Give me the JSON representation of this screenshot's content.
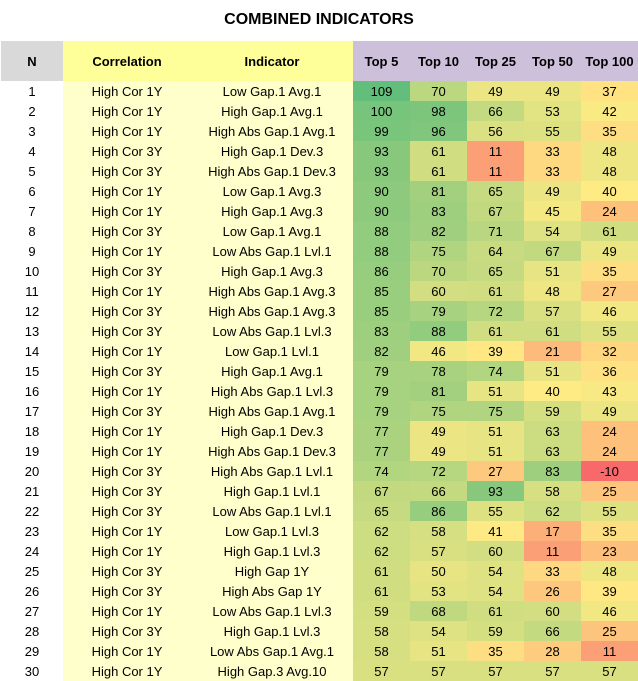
{
  "title": "COMBINED INDICATORS",
  "chart_data": {
    "type": "table",
    "title": "COMBINED INDICATORS",
    "columns": [
      "N",
      "Correlation",
      "Indicator",
      "Top 5",
      "Top 10",
      "Top 25",
      "Top 50",
      "Top 100"
    ],
    "rows": [
      {
        "n": "1",
        "correlation": "High Cor 1Y",
        "indicator": "Low Gap.1 Avg.1",
        "values": [
          109,
          70,
          49,
          49,
          37
        ]
      },
      {
        "n": "2",
        "correlation": "High Cor 1Y",
        "indicator": "High Gap.1 Avg.1",
        "values": [
          100,
          98,
          66,
          53,
          42
        ]
      },
      {
        "n": "3",
        "correlation": "High Cor 1Y",
        "indicator": "High Abs Gap.1 Avg.1",
        "values": [
          99,
          96,
          56,
          55,
          35
        ]
      },
      {
        "n": "4",
        "correlation": "High Cor 3Y",
        "indicator": "High Gap.1 Dev.3",
        "values": [
          93,
          61,
          11,
          33,
          48
        ]
      },
      {
        "n": "5",
        "correlation": "High Cor 3Y",
        "indicator": "High Abs Gap.1 Dev.3",
        "values": [
          93,
          61,
          11,
          33,
          48
        ]
      },
      {
        "n": "6",
        "correlation": "High Cor 1Y",
        "indicator": "Low Gap.1 Avg.3",
        "values": [
          90,
          81,
          65,
          49,
          40
        ]
      },
      {
        "n": "7",
        "correlation": "High Cor 1Y",
        "indicator": "High Gap.1 Avg.3",
        "values": [
          90,
          83,
          67,
          45,
          24
        ]
      },
      {
        "n": "8",
        "correlation": "High Cor 3Y",
        "indicator": "Low Gap.1 Avg.1",
        "values": [
          88,
          82,
          71,
          54,
          61
        ]
      },
      {
        "n": "9",
        "correlation": "High Cor 1Y",
        "indicator": "Low Abs Gap.1 Lvl.1",
        "values": [
          88,
          75,
          64,
          67,
          49
        ]
      },
      {
        "n": "10",
        "correlation": "High Cor 3Y",
        "indicator": "High Gap.1 Avg.3",
        "values": [
          86,
          70,
          65,
          51,
          35
        ]
      },
      {
        "n": "11",
        "correlation": "High Cor 1Y",
        "indicator": "High Abs Gap.1 Avg.3",
        "values": [
          85,
          60,
          61,
          48,
          27
        ]
      },
      {
        "n": "12",
        "correlation": "High Cor 3Y",
        "indicator": "High Abs Gap.1 Avg.3",
        "values": [
          85,
          79,
          72,
          57,
          46
        ]
      },
      {
        "n": "13",
        "correlation": "High Cor 3Y",
        "indicator": "Low Abs Gap.1 Lvl.3",
        "values": [
          83,
          88,
          61,
          61,
          55
        ]
      },
      {
        "n": "14",
        "correlation": "High Cor 1Y",
        "indicator": "Low Gap.1 Lvl.1",
        "values": [
          82,
          46,
          39,
          21,
          32
        ]
      },
      {
        "n": "15",
        "correlation": "High Cor 3Y",
        "indicator": "High Gap.1 Avg.1",
        "values": [
          79,
          78,
          74,
          51,
          36
        ]
      },
      {
        "n": "16",
        "correlation": "High Cor 1Y",
        "indicator": "High Abs Gap.1 Lvl.3",
        "values": [
          79,
          81,
          51,
          40,
          43
        ]
      },
      {
        "n": "17",
        "correlation": "High Cor 3Y",
        "indicator": "High Abs Gap.1 Avg.1",
        "values": [
          79,
          75,
          75,
          59,
          49
        ]
      },
      {
        "n": "18",
        "correlation": "High Cor 1Y",
        "indicator": "High Gap.1 Dev.3",
        "values": [
          77,
          49,
          51,
          63,
          24
        ]
      },
      {
        "n": "19",
        "correlation": "High Cor 1Y",
        "indicator": "High Abs Gap.1 Dev.3",
        "values": [
          77,
          49,
          51,
          63,
          24
        ]
      },
      {
        "n": "20",
        "correlation": "High Cor 3Y",
        "indicator": "High Abs Gap.1 Lvl.1",
        "values": [
          74,
          72,
          27,
          83,
          -10
        ]
      },
      {
        "n": "21",
        "correlation": "High Cor 3Y",
        "indicator": "High Gap.1 Lvl.1",
        "values": [
          67,
          66,
          93,
          58,
          25
        ]
      },
      {
        "n": "22",
        "correlation": "High Cor 3Y",
        "indicator": "Low Abs Gap.1 Lvl.1",
        "values": [
          65,
          86,
          55,
          62,
          55
        ]
      },
      {
        "n": "23",
        "correlation": "High Cor 1Y",
        "indicator": "Low Gap.1 Lvl.3",
        "values": [
          62,
          58,
          41,
          17,
          35
        ]
      },
      {
        "n": "24",
        "correlation": "High Cor 1Y",
        "indicator": "High Gap.1 Lvl.3",
        "values": [
          62,
          57,
          60,
          11,
          23
        ]
      },
      {
        "n": "25",
        "correlation": "High Cor 3Y",
        "indicator": "High Gap 1Y",
        "values": [
          61,
          50,
          54,
          33,
          48
        ]
      },
      {
        "n": "26",
        "correlation": "High Cor 3Y",
        "indicator": "High Abs Gap 1Y",
        "values": [
          61,
          53,
          54,
          26,
          39
        ]
      },
      {
        "n": "27",
        "correlation": "High Cor 1Y",
        "indicator": "Low Abs Gap.1 Lvl.3",
        "values": [
          59,
          68,
          61,
          60,
          46
        ]
      },
      {
        "n": "28",
        "correlation": "High Cor 3Y",
        "indicator": "High Gap.1 Lvl.3",
        "values": [
          58,
          54,
          59,
          66,
          25
        ]
      },
      {
        "n": "29",
        "correlation": "High Cor 1Y",
        "indicator": "Low Abs Gap.1 Avg.1",
        "values": [
          58,
          51,
          35,
          28,
          11
        ]
      },
      {
        "n": "30",
        "correlation": "High Cor 1Y",
        "indicator": "High Gap.3 Avg.10",
        "values": [
          57,
          57,
          57,
          57,
          57
        ]
      }
    ]
  }
}
